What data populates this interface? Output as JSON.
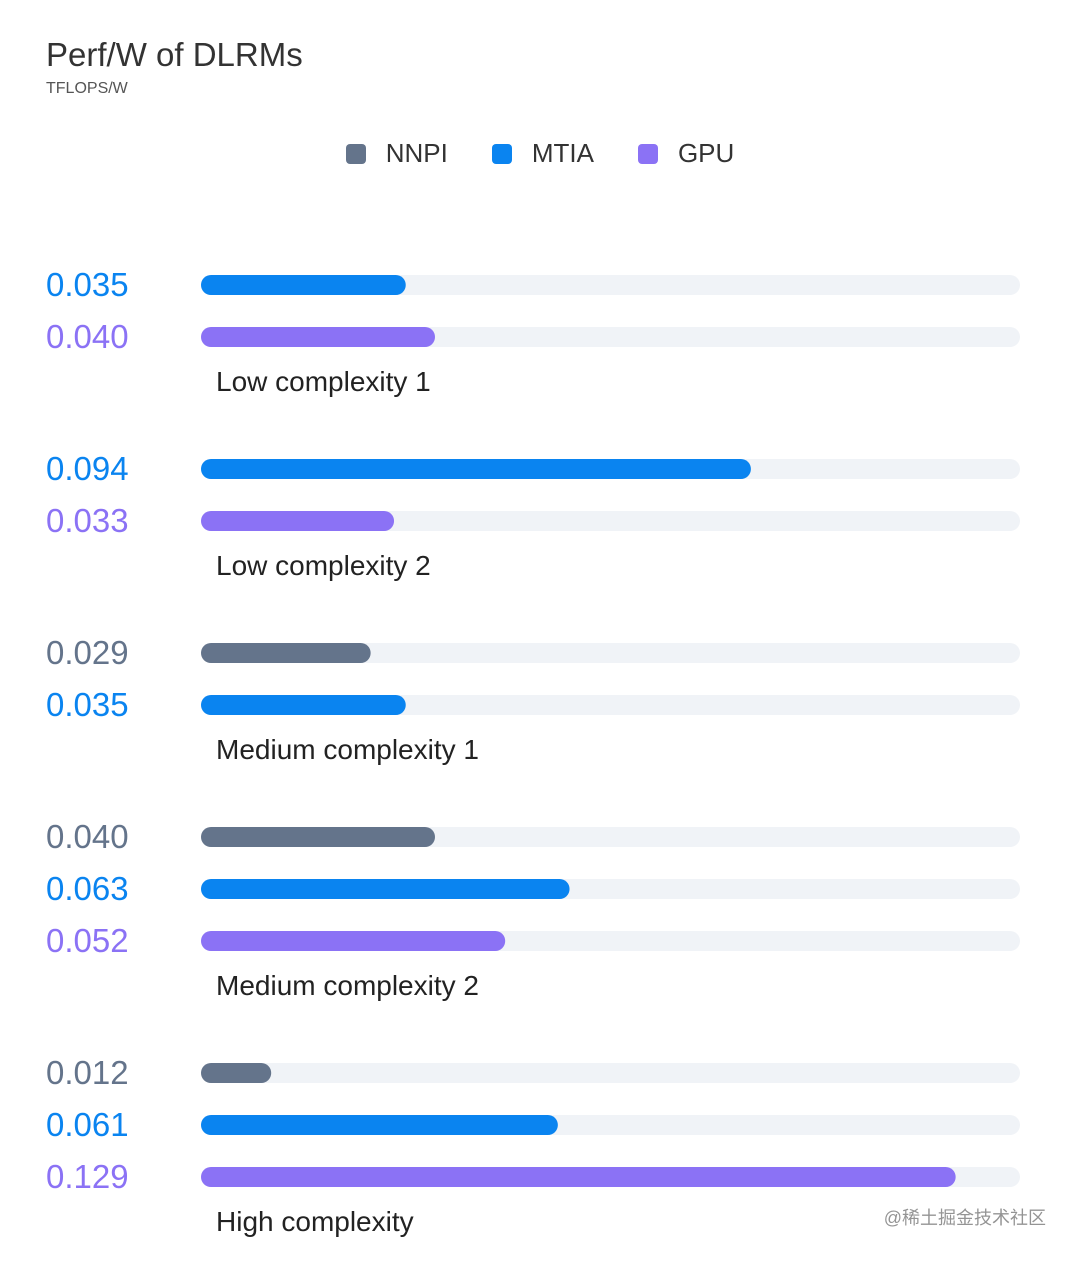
{
  "chart_data": {
    "type": "bar",
    "orientation": "horizontal",
    "title": "Perf/W of DLRMs",
    "subtitle": "TFLOPS/W",
    "xlim": [
      0,
      0.14
    ],
    "legend": [
      {
        "name": "NNPI",
        "color": "#64748b"
      },
      {
        "name": "MTIA",
        "color": "#0a84f0"
      },
      {
        "name": "GPU",
        "color": "#8b72f5"
      }
    ],
    "groups": [
      {
        "category": "Low complexity 1",
        "bars": [
          {
            "series": "MTIA",
            "value": 0.035,
            "label": "0.035"
          },
          {
            "series": "GPU",
            "value": 0.04,
            "label": "0.040"
          }
        ]
      },
      {
        "category": "Low complexity 2",
        "bars": [
          {
            "series": "MTIA",
            "value": 0.094,
            "label": "0.094"
          },
          {
            "series": "GPU",
            "value": 0.033,
            "label": "0.033"
          }
        ]
      },
      {
        "category": "Medium complexity 1",
        "bars": [
          {
            "series": "NNPI",
            "value": 0.029,
            "label": "0.029"
          },
          {
            "series": "MTIA",
            "value": 0.035,
            "label": "0.035"
          }
        ]
      },
      {
        "category": "Medium complexity 2",
        "bars": [
          {
            "series": "NNPI",
            "value": 0.04,
            "label": "0.040"
          },
          {
            "series": "MTIA",
            "value": 0.063,
            "label": "0.063"
          },
          {
            "series": "GPU",
            "value": 0.052,
            "label": "0.052"
          }
        ]
      },
      {
        "category": "High complexity",
        "bars": [
          {
            "series": "NNPI",
            "value": 0.012,
            "label": "0.012"
          },
          {
            "series": "MTIA",
            "value": 0.061,
            "label": "0.061"
          },
          {
            "series": "GPU",
            "value": 0.129,
            "label": "0.129"
          }
        ]
      }
    ],
    "track_color": "#f0f3f7"
  },
  "watermark": "@稀土掘金技术社区"
}
